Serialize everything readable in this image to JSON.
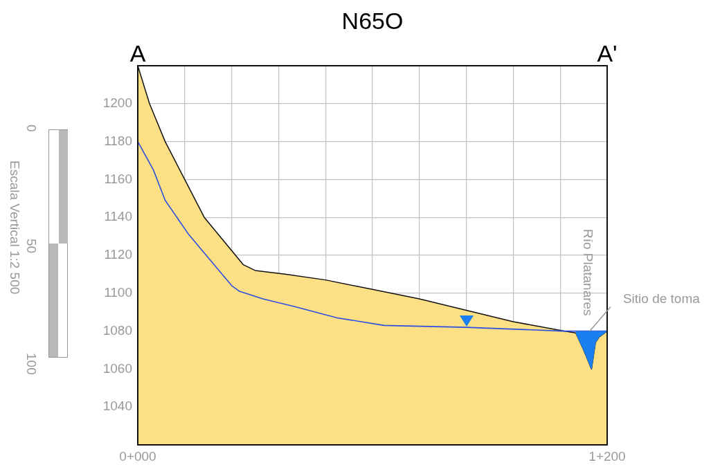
{
  "chart_data": {
    "type": "area",
    "title": "N65O",
    "categories": [
      "0+000",
      null,
      null,
      null,
      null,
      null,
      null,
      null,
      null,
      null,
      null,
      null,
      null,
      null,
      null,
      null,
      null,
      null,
      null,
      null,
      null,
      null,
      null,
      null,
      null,
      null,
      null,
      null,
      null,
      null,
      null,
      null,
      null,
      null,
      null,
      null,
      null,
      null,
      null,
      null,
      null,
      null,
      null,
      null,
      null,
      null,
      null,
      null,
      null,
      null,
      null,
      null,
      null,
      null,
      null,
      null,
      null,
      null,
      null,
      null,
      null,
      null,
      null,
      null,
      null,
      null,
      null,
      null,
      null,
      null,
      null,
      null,
      null,
      null,
      null,
      null,
      null,
      null,
      null,
      null,
      null,
      null,
      null,
      null,
      null,
      null,
      null,
      null,
      null,
      null,
      null,
      null,
      null,
      null,
      null,
      null,
      null,
      null,
      null,
      null,
      null,
      null,
      null,
      null,
      null,
      null,
      null,
      null,
      null,
      null,
      null,
      null,
      null,
      null,
      null,
      null,
      null,
      null,
      null,
      null,
      "1+200"
    ],
    "series": [
      {
        "color": "#fddf86",
        "values": [
          1220,
          null,
          null,
          1200,
          null,
          null,
          null,
          1180,
          null,
          null,
          null,
          null,
          1160,
          null,
          null,
          null,
          null,
          1140,
          null,
          null,
          null,
          null,
          null,
          null,
          null,
          1120,
          null,
          1115,
          null,
          null,
          1112,
          null,
          null,
          null,
          null,
          null,
          null,
          null,
          1110,
          null,
          null,
          null,
          null,
          null,
          null,
          null,
          null,
          null,
          1107,
          null,
          null,
          null,
          null,
          null,
          null,
          null,
          null,
          null,
          null,
          null,
          1102,
          null,
          null,
          null,
          null,
          null,
          null,
          null,
          null,
          null,
          null,
          null,
          1097,
          null,
          null,
          null,
          null,
          null,
          null,
          null,
          null,
          null,
          null,
          null,
          1091,
          null,
          null,
          null,
          null,
          null,
          null,
          null,
          null,
          null,
          null,
          null,
          1085,
          null,
          null,
          null,
          null,
          null,
          null,
          null,
          null,
          null,
          null,
          null,
          null,
          1080,
          null,
          null,
          1079,
          null,
          1070,
          null,
          1060,
          1074,
          1077,
          null,
          1080
        ]
      },
      {
        "type": "line",
        "color": "#2a4de0",
        "values": [
          1180,
          null,
          null,
          null,
          1165,
          null,
          null,
          1149,
          null,
          null,
          null,
          null,
          null,
          1131,
          null,
          null,
          null,
          null,
          null,
          null,
          null,
          null,
          null,
          null,
          1104,
          null,
          1101,
          null,
          null,
          null,
          null,
          null,
          1097,
          null,
          null,
          null,
          null,
          null,
          null,
          null,
          1093,
          null,
          null,
          null,
          null,
          null,
          null,
          null,
          null,
          null,
          null,
          1087,
          null,
          null,
          null,
          null,
          null,
          null,
          null,
          null,
          null,
          null,
          null,
          1083,
          null,
          null,
          null,
          null,
          null,
          null,
          null,
          null,
          null,
          null,
          null,
          null,
          null,
          null,
          null,
          null,
          null,
          null,
          null,
          null,
          1082,
          null,
          null,
          null,
          null,
          null,
          null,
          null,
          null,
          null,
          null,
          null,
          null,
          null,
          null,
          null,
          null,
          null,
          null,
          null,
          null,
          null,
          null,
          null,
          null,
          1080,
          null,
          null,
          null,
          null,
          null,
          null,
          null,
          null,
          null,
          null,
          1080
        ]
      },
      {
        "type": "area",
        "color": "#1a7ff0",
        "values": [
          null,
          null,
          null,
          null,
          null,
          null,
          null,
          null,
          null,
          null,
          null,
          null,
          null,
          null,
          null,
          null,
          null,
          null,
          null,
          null,
          null,
          null,
          null,
          null,
          null,
          null,
          null,
          null,
          null,
          null,
          null,
          null,
          null,
          null,
          null,
          null,
          null,
          null,
          null,
          null,
          null,
          null,
          null,
          null,
          null,
          null,
          null,
          null,
          null,
          null,
          null,
          null,
          null,
          null,
          null,
          null,
          null,
          null,
          null,
          null,
          null,
          null,
          null,
          null,
          null,
          null,
          null,
          null,
          null,
          null,
          null,
          null,
          null,
          null,
          null,
          null,
          null,
          null,
          null,
          null,
          null,
          null,
          null,
          null,
          null,
          null,
          null,
          null,
          null,
          null,
          null,
          null,
          null,
          null,
          null,
          null,
          null,
          null,
          null,
          null,
          null,
          null,
          null,
          null,
          null,
          null,
          null,
          null,
          null,
          null,
          null,
          null,
          1079,
          null,
          1070,
          null,
          1060,
          1074,
          1077,
          null,
          1080
        ]
      }
    ],
    "ylim": [
      1020,
      1220
    ],
    "yticks": [
      1040,
      1060,
      1080,
      1100,
      1120,
      1140,
      1160,
      1180,
      1200
    ],
    "grid": true,
    "legend": false,
    "marker": "none",
    "line_style": "solid",
    "annotations": [
      "A",
      "A'",
      {
        "text": "Río Platanares",
        "x": "1+200",
        "y": 1080
      },
      {
        "text": "Sitio de toma",
        "x": "1+200",
        "y": 1080
      },
      "Escala Vertical 1:2 500",
      "0",
      "50",
      "100"
    ]
  }
}
